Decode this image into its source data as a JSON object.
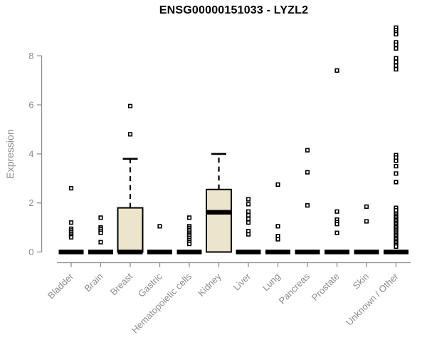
{
  "chart_data": {
    "type": "boxplot",
    "title": "ENSG00000151033 - LYZL2",
    "xlabel": "",
    "ylabel": "Expression",
    "ylim": [
      0,
      9.3
    ],
    "yticks": [
      0,
      2,
      4,
      6,
      8
    ],
    "grid": false,
    "categories": [
      "Bladder",
      "Brain",
      "Breast",
      "Gastric",
      "Hematopoietic cells",
      "Kidney",
      "Liver",
      "Lung",
      "Pancreas",
      "Prostate",
      "Skin",
      "Unknown / Other"
    ],
    "boxes": [
      {
        "category": "Bladder",
        "whisker_low": 0,
        "q1": 0,
        "median": 0,
        "q3": 0,
        "whisker_high": 0,
        "outliers": [
          2.6,
          1.2,
          0.95,
          0.88,
          0.8,
          0.72,
          0.66,
          0.6
        ]
      },
      {
        "category": "Brain",
        "whisker_low": 0,
        "q1": 0,
        "median": 0,
        "q3": 0,
        "whisker_high": 0,
        "outliers": [
          1.4,
          1.0,
          0.93,
          0.86,
          0.78,
          0.4
        ]
      },
      {
        "category": "Breast",
        "whisker_low": 0,
        "q1": 0,
        "median": 0,
        "q3": 1.8,
        "whisker_high": 3.8,
        "outliers": [
          5.95,
          4.8
        ]
      },
      {
        "category": "Gastric",
        "whisker_low": 0,
        "q1": 0,
        "median": 0,
        "q3": 0,
        "whisker_high": 0,
        "outliers": [
          1.05
        ]
      },
      {
        "category": "Hematopoietic cells",
        "whisker_low": 0,
        "q1": 0,
        "median": 0,
        "q3": 0,
        "whisker_high": 0,
        "outliers": [
          1.4,
          1.05,
          0.98,
          0.9,
          0.83,
          0.76,
          0.7,
          0.63,
          0.56,
          0.48,
          0.4,
          0.33
        ]
      },
      {
        "category": "Kidney",
        "whisker_low": 0,
        "q1": 0,
        "median": 1.62,
        "q3": 2.55,
        "whisker_high": 4.0,
        "outliers": []
      },
      {
        "category": "Liver",
        "whisker_low": 0,
        "q1": 0,
        "median": 0,
        "q3": 0,
        "whisker_high": 0,
        "outliers": [
          2.15,
          1.95,
          1.65,
          1.5,
          1.35,
          1.2,
          0.85,
          0.72
        ]
      },
      {
        "category": "Lung",
        "whisker_low": 0,
        "q1": 0,
        "median": 0,
        "q3": 0,
        "whisker_high": 0,
        "outliers": [
          2.75,
          1.05,
          0.65,
          0.52
        ]
      },
      {
        "category": "Pancreas",
        "whisker_low": 0,
        "q1": 0,
        "median": 0,
        "q3": 0,
        "whisker_high": 0,
        "outliers": [
          4.15,
          3.25,
          1.9
        ]
      },
      {
        "category": "Prostate",
        "whisker_low": 0,
        "q1": 0,
        "median": 0,
        "q3": 0,
        "whisker_high": 0,
        "outliers": [
          7.4,
          1.65,
          1.32,
          1.22,
          1.14,
          0.78
        ]
      },
      {
        "category": "Skin",
        "whisker_low": 0,
        "q1": 0,
        "median": 0,
        "q3": 0,
        "whisker_high": 0,
        "outliers": [
          1.85,
          1.25
        ]
      },
      {
        "category": "Unknown / Other",
        "whisker_low": 0,
        "q1": 0,
        "median": 0,
        "q3": 0,
        "whisker_high": 0,
        "outliers": [
          9.15,
          9.05,
          8.95,
          8.88,
          8.55,
          8.45,
          8.3,
          7.9,
          7.75,
          7.6,
          7.45,
          3.95,
          3.85,
          3.72,
          3.5,
          3.2,
          2.85,
          1.8,
          1.7,
          1.55,
          1.48,
          1.42,
          1.36,
          1.3,
          1.24,
          1.18,
          1.12,
          1.06,
          1.0,
          0.94,
          0.88,
          0.82,
          0.76,
          0.7,
          0.64,
          0.58,
          0.52,
          0.46,
          0.4,
          0.34,
          0.28,
          0.22
        ]
      }
    ],
    "colors": {
      "axis": "#8c8c8c",
      "box_fill": "#ece5cb",
      "box_stroke": "#000000",
      "median": "#000000",
      "outlier_fill": "#ffffff",
      "outlier_stroke": "#000000",
      "title": "#000000"
    }
  }
}
